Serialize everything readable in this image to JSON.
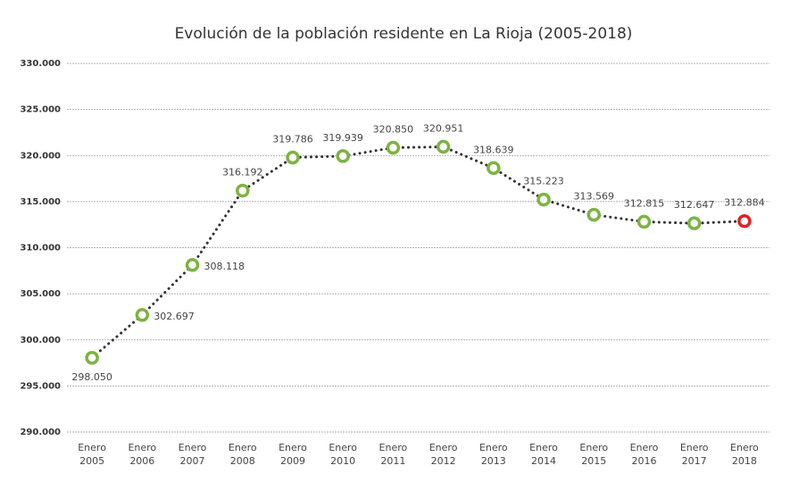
{
  "chart_data": {
    "type": "line",
    "title": "Evolución de la población residente en La Rioja (2005-2018)",
    "categories": [
      "Enero 2005",
      "Enero 2006",
      "Enero 2007",
      "Enero 2008",
      "Enero 2009",
      "Enero 2010",
      "Enero 2011",
      "Enero 2012",
      "Enero 2013",
      "Enero 2014",
      "Enero 2015",
      "Enero 2016",
      "Enero 2017",
      "Enero 2018"
    ],
    "values": [
      298050,
      302697,
      308118,
      316192,
      319786,
      319939,
      320850,
      320951,
      318639,
      315223,
      313569,
      312815,
      312647,
      312884
    ],
    "value_labels": [
      "298.050",
      "302.697",
      "308.118",
      "316.192",
      "319.786",
      "319.939",
      "320.850",
      "320.951",
      "318.639",
      "315.223",
      "313.569",
      "312.815",
      "312.647",
      "312.884"
    ],
    "line_color": "#333333",
    "marker_colors": [
      "#7cb342",
      "#7cb342",
      "#7cb342",
      "#7cb342",
      "#7cb342",
      "#7cb342",
      "#7cb342",
      "#7cb342",
      "#7cb342",
      "#7cb342",
      "#7cb342",
      "#7cb342",
      "#7cb342",
      "#e02424"
    ],
    "ylim": [
      290000,
      330000
    ],
    "yticks": [
      {
        "value": 290000,
        "label": "290.000"
      },
      {
        "value": 295000,
        "label": "295.000"
      },
      {
        "value": 300000,
        "label": "300.000"
      },
      {
        "value": 305000,
        "label": "305.000"
      },
      {
        "value": 310000,
        "label": "310.000"
      },
      {
        "value": 315000,
        "label": "315.000"
      },
      {
        "value": 320000,
        "label": "320.000"
      },
      {
        "value": 325000,
        "label": "325.000"
      },
      {
        "value": 330000,
        "label": "330.000"
      }
    ],
    "grid": true
  }
}
